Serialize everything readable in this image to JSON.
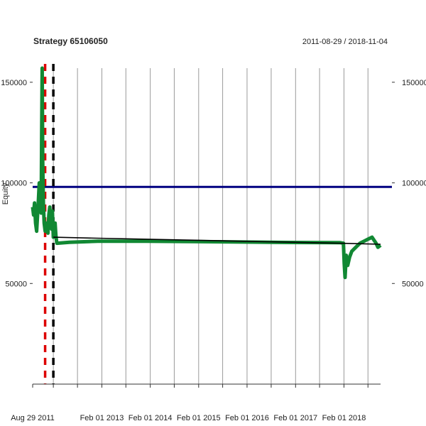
{
  "chart_data": {
    "type": "line",
    "title": "Strategy 65106050",
    "date_range": "2011-08-29 / 2018-11-04",
    "ylabel": "Equity",
    "ylim": [
      0,
      157000
    ],
    "xlim": [
      "2011-08-29",
      "2018-11-04"
    ],
    "y_ticks": [
      50000,
      100000,
      150000
    ],
    "y_tick_labels": [
      "50000",
      "100000",
      "150000"
    ],
    "x_ticks": [
      "2011-08-29",
      "2013-02-01",
      "2014-02-01",
      "2015-02-01",
      "2016-02-01",
      "2017-02-01",
      "2018-02-01"
    ],
    "x_tick_labels": [
      "Aug 29 2011",
      "Feb 01 2013",
      "Feb 01 2014",
      "Feb 01 2015",
      "Feb 01 2016",
      "Feb 01 2017",
      "Feb 01 2018"
    ],
    "grid": true,
    "reference_line": {
      "value": 98000,
      "color": "#000080"
    },
    "vlines": [
      {
        "date": "2011-12-01",
        "color": "#dd0000"
      },
      {
        "date": "2012-02-01",
        "color": "#000000"
      }
    ],
    "series": [
      {
        "color": "#118833",
        "points": [
          [
            "2011-08-29",
            88000
          ],
          [
            "2011-09-05",
            84000
          ],
          [
            "2011-09-12",
            90000
          ],
          [
            "2011-09-20",
            80000
          ],
          [
            "2011-09-28",
            76000
          ],
          [
            "2011-10-05",
            84000
          ],
          [
            "2011-10-12",
            92000
          ],
          [
            "2011-10-18",
            100000
          ],
          [
            "2011-10-25",
            95000
          ],
          [
            "2011-11-01",
            85000
          ],
          [
            "2011-11-05",
            125000
          ],
          [
            "2011-11-09",
            157000
          ],
          [
            "2011-11-13",
            110000
          ],
          [
            "2011-11-18",
            90000
          ],
          [
            "2011-11-24",
            80000
          ],
          [
            "2011-12-01",
            76000
          ],
          [
            "2011-12-08",
            80000
          ],
          [
            "2011-12-15",
            78000
          ],
          [
            "2011-12-22",
            75000
          ],
          [
            "2011-12-29",
            84000
          ],
          [
            "2012-01-05",
            88000
          ],
          [
            "2012-01-12",
            80000
          ],
          [
            "2012-01-19",
            77000
          ],
          [
            "2012-01-25",
            86000
          ],
          [
            "2012-02-01",
            73000
          ],
          [
            "2012-02-08",
            78000
          ],
          [
            "2012-02-14",
            80000
          ],
          [
            "2012-02-20",
            74000
          ],
          [
            "2012-02-27",
            70000
          ],
          [
            "2012-06-01",
            70500
          ],
          [
            "2013-01-01",
            71000
          ],
          [
            "2014-01-01",
            71000
          ],
          [
            "2015-01-01",
            70800
          ],
          [
            "2016-01-01",
            70600
          ],
          [
            "2017-01-01",
            70400
          ],
          [
            "2018-01-01",
            70300
          ],
          [
            "2018-01-28",
            70000
          ],
          [
            "2018-02-03",
            60000
          ],
          [
            "2018-02-09",
            53000
          ],
          [
            "2018-02-18",
            64000
          ],
          [
            "2018-03-01",
            59000
          ],
          [
            "2018-03-15",
            63000
          ],
          [
            "2018-04-01",
            66000
          ],
          [
            "2018-05-01",
            68000
          ],
          [
            "2018-06-01",
            70000
          ],
          [
            "2018-07-01",
            71000
          ],
          [
            "2018-08-01",
            72000
          ],
          [
            "2018-09-01",
            73000
          ],
          [
            "2018-10-01",
            70000
          ],
          [
            "2018-10-15",
            68000
          ],
          [
            "2018-11-04",
            69000
          ]
        ]
      },
      {
        "color": "#000000",
        "points": [
          [
            "2012-02-01",
            73000
          ],
          [
            "2013-01-01",
            72500
          ],
          [
            "2014-01-01",
            72000
          ],
          [
            "2015-01-01",
            71500
          ],
          [
            "2016-01-01",
            71000
          ],
          [
            "2017-01-01",
            70500
          ],
          [
            "2018-01-01",
            70000
          ],
          [
            "2018-11-04",
            69500
          ]
        ]
      }
    ]
  }
}
